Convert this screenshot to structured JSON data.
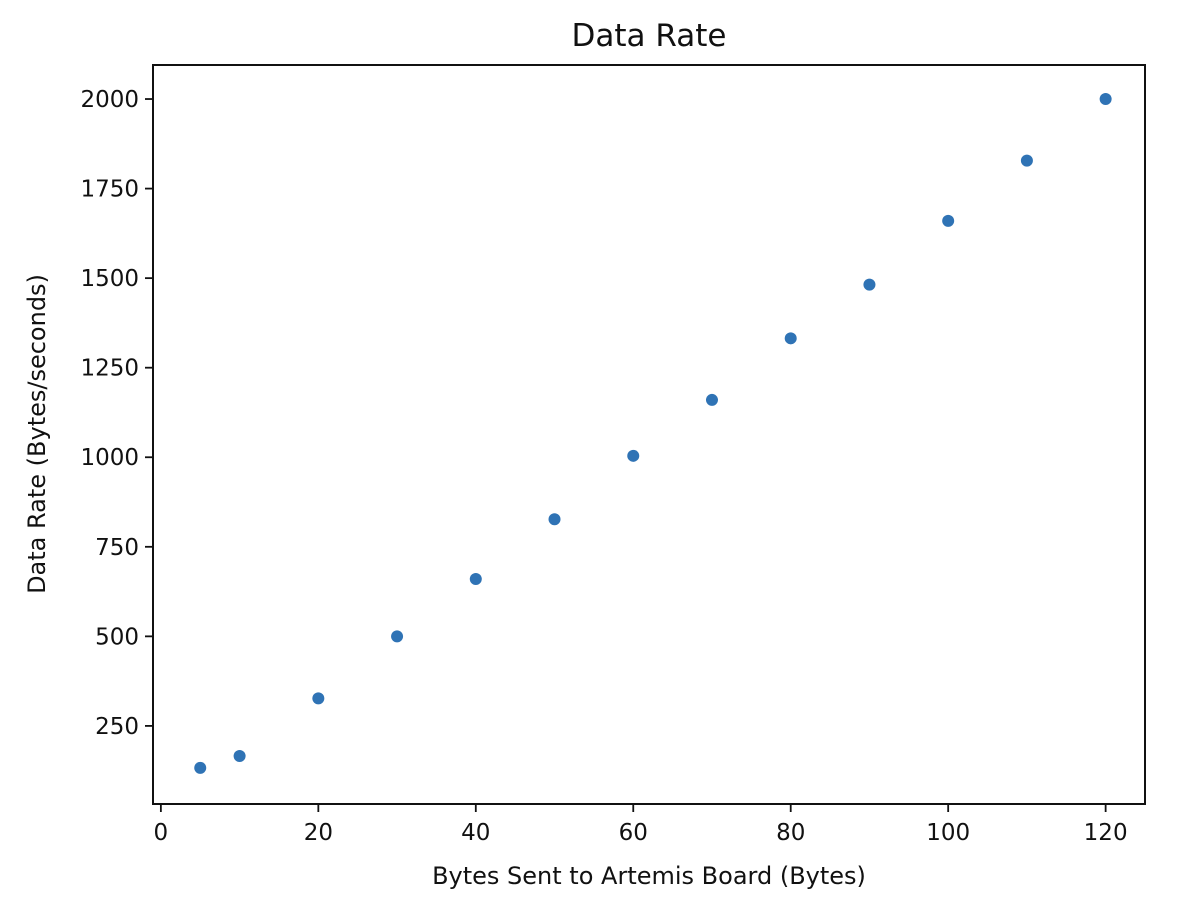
{
  "chart_data": {
    "type": "scatter",
    "title": "Data Rate",
    "xlabel": "Bytes Sent to Artemis Board (Bytes)",
    "ylabel": "Data Rate (Bytes/seconds)",
    "xlim": [
      -1,
      125
    ],
    "ylim": [
      32,
      2095
    ],
    "xticks": [
      0,
      20,
      40,
      60,
      80,
      100,
      120
    ],
    "yticks": [
      250,
      500,
      750,
      1000,
      1250,
      1500,
      1750,
      2000
    ],
    "grid": false,
    "legend": "none",
    "colors": {
      "marker": "#2f73b5",
      "axes": "#111111",
      "text": "#111111"
    },
    "series": [
      {
        "x": [
          5,
          10,
          20,
          30,
          40,
          50,
          60,
          70,
          80,
          90,
          100,
          110,
          120
        ],
        "y": [
          133,
          166,
          327,
          500,
          660,
          827,
          1004,
          1160,
          1332,
          1482,
          1660,
          1828,
          2000
        ]
      }
    ]
  }
}
